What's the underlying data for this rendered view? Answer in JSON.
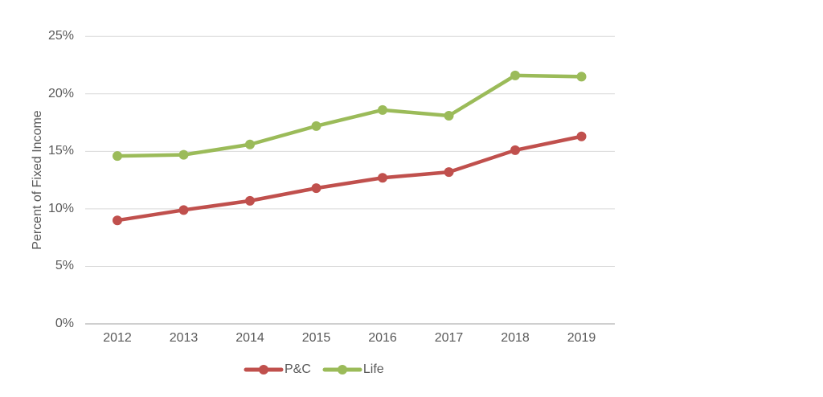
{
  "chart_data": {
    "type": "line",
    "title": "",
    "xlabel": "",
    "ylabel": "Percent of Fixed Income",
    "categories": [
      "2012",
      "2013",
      "2014",
      "2015",
      "2016",
      "2017",
      "2018",
      "2019"
    ],
    "series": [
      {
        "name": "P&C",
        "color": "#C0504D",
        "values": [
          9.0,
          9.9,
          10.7,
          11.8,
          12.7,
          13.2,
          15.1,
          16.3
        ]
      },
      {
        "name": "Life",
        "color": "#9BBB59",
        "values": [
          14.6,
          14.7,
          15.6,
          17.2,
          18.6,
          18.1,
          21.6,
          21.5
        ]
      }
    ],
    "ylim": [
      0,
      25
    ],
    "ytick_step": 5,
    "yticks": [
      "0%",
      "5%",
      "10%",
      "15%",
      "20%",
      "25%"
    ],
    "grid": true,
    "legend_position": "bottom",
    "marker": "circle"
  },
  "colors": {
    "gridline": "#D9D9D9",
    "axis_line": "#BFBFBF",
    "text": "#595959",
    "background": "#FFFFFF"
  }
}
